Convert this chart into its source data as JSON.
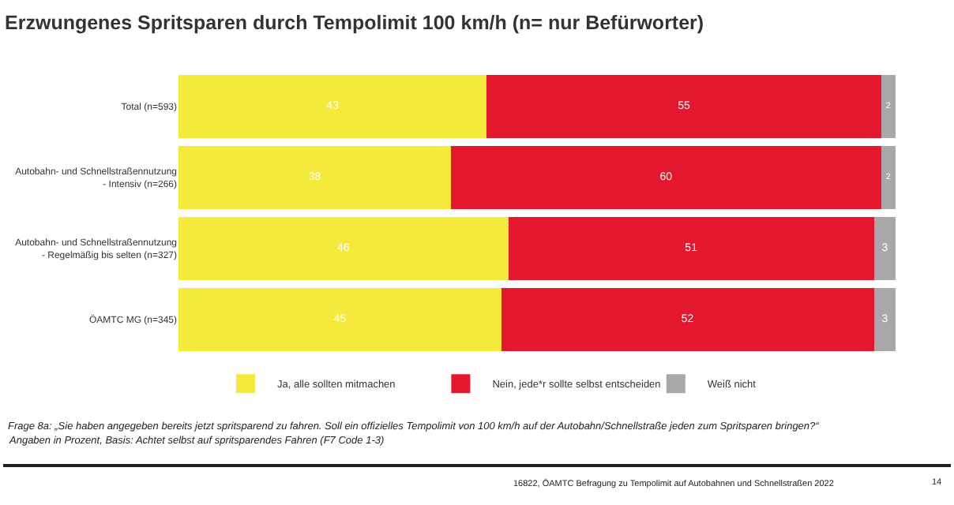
{
  "chart_data": {
    "type": "bar",
    "orientation": "horizontal",
    "stacked": true,
    "title": "Erzwungenes Spritsparen durch Tempolimit 100 km/h (n= nur Befürworter)",
    "categories": [
      "Total (n=593)",
      "Autobahn- und Schnellstraßennutzung\n- Intensiv (n=266)",
      "Autobahn- und Schnellstraßennutzung\n- Regelmäßig bis selten (n=327)",
      "ÖAMTC MG (n=345)"
    ],
    "series": [
      {
        "name": "Ja, alle sollten mitmachen",
        "color": "#f5e93c",
        "values": [
          43,
          38,
          46,
          45
        ]
      },
      {
        "name": "Nein, jede*r sollte selbst entscheiden",
        "color": "#e3172d",
        "values": [
          55,
          60,
          51,
          52
        ]
      },
      {
        "name": "Weiß nicht",
        "color": "#a8a8a8",
        "values": [
          2,
          2,
          3,
          3
        ]
      }
    ],
    "xlim": [
      0,
      100
    ],
    "tick_labels": "y",
    "data_labels": true,
    "legend": "bottom",
    "annotations": [
      "Frage 8a: „Sie haben angegeben bereits jetzt spritsparend zu fahren. Soll ein offizielles Tempolimit von 100 km/h auf der Autobahn/Schnellstraße jeden zum Spritsparen bringen?“",
      "Angaben in Prozent, Basis: Achtet selbst auf spritsparendes Fahren (F7 Code 1-3)",
      "16822, ÖAMTC Befragung zu Tempolimit auf Autobahnen und Schnellstraßen 2022",
      "14"
    ]
  }
}
